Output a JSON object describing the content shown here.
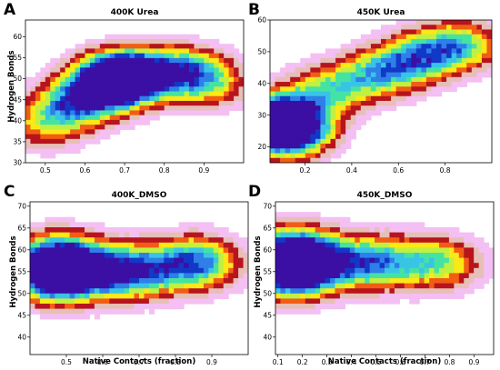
{
  "colors": {
    "levels": [
      "#ffffff",
      "#f4bff2",
      "#e6bfb6",
      "#b7141d",
      "#f25d14",
      "#fbe816",
      "#bff042",
      "#45e3a3",
      "#39c4e6",
      "#2e7fe8",
      "#1238c8",
      "#3b0fa3"
    ]
  },
  "chart_data": [
    {
      "type": "heatmap",
      "panel_letter": "A",
      "title": "400K Urea",
      "xlabel": "",
      "ylabel": "Hydrogen Bonds",
      "xlim": [
        0.45,
        1.0
      ],
      "ylim": [
        30,
        64
      ],
      "xticks": [
        "0.5",
        "0.6",
        "0.7",
        "0.8",
        "0.9"
      ],
      "yticks": [
        "30",
        "35",
        "40",
        "45",
        "50",
        "55",
        "60"
      ],
      "density_centers": [
        {
          "x": 0.7,
          "y": 51,
          "weight": 1.0
        },
        {
          "x": 0.66,
          "y": 48,
          "weight": 0.8
        },
        {
          "x": 0.84,
          "y": 52,
          "weight": 0.55
        },
        {
          "x": 0.57,
          "y": 44,
          "weight": 0.5
        },
        {
          "x": 0.5,
          "y": 39,
          "weight": 0.35
        },
        {
          "x": 0.91,
          "y": 49,
          "weight": 0.4
        }
      ]
    },
    {
      "type": "heatmap",
      "panel_letter": "B",
      "title": "450K Urea",
      "xlabel": "",
      "ylabel": "",
      "xlim": [
        0.05,
        1.0
      ],
      "ylim": [
        15,
        60
      ],
      "xticks": [
        "0.2",
        "0.4",
        "0.6",
        "0.8"
      ],
      "yticks": [
        "20",
        "30",
        "40",
        "50",
        "60"
      ],
      "density_centers": [
        {
          "x": 0.1,
          "y": 29,
          "weight": 1.0
        },
        {
          "x": 0.12,
          "y": 24,
          "weight": 0.8
        },
        {
          "x": 0.3,
          "y": 38,
          "weight": 0.45
        },
        {
          "x": 0.52,
          "y": 43,
          "weight": 0.5
        },
        {
          "x": 0.68,
          "y": 48,
          "weight": 0.5
        },
        {
          "x": 0.86,
          "y": 52,
          "weight": 0.55
        }
      ]
    },
    {
      "type": "heatmap",
      "panel_letter": "C",
      "title": "400K_DMSO",
      "xlabel": "Native Contacts (fraction)",
      "ylabel": "Hydrogen Bonds",
      "xlim": [
        0.4,
        1.0
      ],
      "ylim": [
        36,
        71
      ],
      "xticks": [
        "0.5",
        "0.6",
        "0.7",
        "0.8",
        "0.9"
      ],
      "yticks": [
        "40",
        "45",
        "50",
        "55",
        "60",
        "65",
        "70"
      ],
      "density_centers": [
        {
          "x": 0.48,
          "y": 54,
          "weight": 1.0
        },
        {
          "x": 0.48,
          "y": 58,
          "weight": 0.7
        },
        {
          "x": 0.62,
          "y": 55,
          "weight": 0.5
        },
        {
          "x": 0.71,
          "y": 55,
          "weight": 0.5
        },
        {
          "x": 0.86,
          "y": 57,
          "weight": 0.7
        }
      ]
    },
    {
      "type": "heatmap",
      "panel_letter": "D",
      "title": "450K_DMSO",
      "xlabel": "Native Contacts (fraction)",
      "ylabel": "Hydrogen Bonds",
      "xlim": [
        0.09,
        0.98
      ],
      "ylim": [
        36,
        71
      ],
      "xticks": [
        "0.1",
        "0.2",
        "0.3",
        "0.4",
        "0.5",
        "0.6",
        "0.7",
        "0.8",
        "0.9"
      ],
      "yticks": [
        "40",
        "45",
        "50",
        "55",
        "60",
        "65",
        "70"
      ],
      "density_centers": [
        {
          "x": 0.15,
          "y": 55,
          "weight": 1.0
        },
        {
          "x": 0.16,
          "y": 60,
          "weight": 0.65
        },
        {
          "x": 0.33,
          "y": 57,
          "weight": 0.45
        },
        {
          "x": 0.52,
          "y": 57,
          "weight": 0.55
        },
        {
          "x": 0.76,
          "y": 57,
          "weight": 0.5
        }
      ]
    }
  ]
}
